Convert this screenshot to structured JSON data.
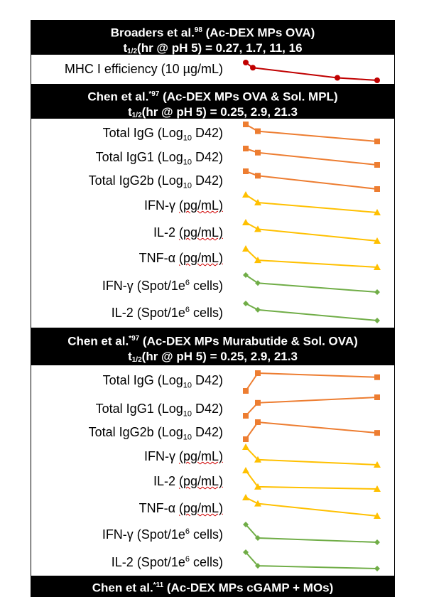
{
  "colors": {
    "red": "#c00000",
    "orange": "#ed7d31",
    "yellow": "#ffc000",
    "green": "#70ad47"
  },
  "sections": [
    {
      "id": "s1",
      "title_author": "Broaders et al.",
      "title_ref": "98",
      "title_rest": " (Ac-DEX MPs OVA)",
      "halflife_prefix": "t",
      "halflife_sub": "1/2",
      "halflife_rest": "(hr @ pH 5) = 0.27, 1.7, 11, 16"
    },
    {
      "id": "s2",
      "title_author": "Chen et al.",
      "title_ref": "*97",
      "title_rest": " (Ac-DEX MPs OVA & Sol. MPL)",
      "halflife_prefix": "t",
      "halflife_sub": "1/2",
      "halflife_rest": "(hr @ pH 5) = 0.25, 2.9, 21.3"
    },
    {
      "id": "s3",
      "title_author": "Chen et al.",
      "title_ref": "*97",
      "title_rest": " (Ac-DEX MPs Murabutide & Sol. OVA)",
      "halflife_prefix": "t",
      "halflife_sub": "1/2",
      "halflife_rest": "(hr @ pH 5) = 0.25, 2.9, 21.3"
    },
    {
      "id": "s4",
      "title_author": "Chen et al.",
      "title_ref": "*11",
      "title_rest": " (Ac-DEX MPs cGAMP + MOs)",
      "halflife_prefix": "",
      "halflife_sub": "",
      "halflife_rest": ""
    }
  ],
  "rows": {
    "mhc": "MHC I efficiency (10 µg/mL)",
    "igg_pre": "Total IgG (Log",
    "igg1_pre": "Total IgG1 (Log",
    "igg2b_pre": "Total IgG2b (Log",
    "log_sub": "10",
    "log_post": " D42)",
    "ifn": "IFN-γ ",
    "il2": "IL-2 ",
    "tnf": "TNF-α ",
    "pg_unit": "(pg/mL)",
    "ifn_spot": "IFN-γ (Spot/1e",
    "il2_spot": "IL-2 (Spot/1e",
    "spot_sup": "6",
    "spot_post": " cells)"
  },
  "chart_data": {
    "type": "line",
    "title": "",
    "xlabel": "",
    "ylabel": "",
    "note": "Sparklines: relative trend versus degradation half-life; no axes or numeric values printed.",
    "x_halflife_hr": {
      "s1": [
        0.27,
        1.7,
        11,
        16
      ],
      "s2": [
        0.25,
        2.9,
        21.3
      ],
      "s3": [
        0.25,
        2.9,
        21.3
      ]
    },
    "series": [
      {
        "section": "s1",
        "row": "MHC I efficiency (10 µg/mL)",
        "marker": "circle",
        "color": "red",
        "values": [
          1.0,
          0.71,
          0.14,
          0.0
        ]
      },
      {
        "section": "s2",
        "row": "Total IgG (Log10 D42)",
        "marker": "square",
        "color": "orange",
        "values": [
          1.0,
          0.6,
          0.0
        ]
      },
      {
        "section": "s2",
        "row": "Total IgG1 (Log10 D42)",
        "marker": "square",
        "color": "orange",
        "values": [
          1.0,
          0.75,
          0.0
        ]
      },
      {
        "section": "s2",
        "row": "Total IgG2b (Log10 D42)",
        "marker": "square",
        "color": "orange",
        "values": [
          1.0,
          0.75,
          0.0
        ]
      },
      {
        "section": "s2",
        "row": "IFN-γ (pg/mL)",
        "marker": "triangle",
        "color": "yellow",
        "values": [
          1.0,
          0.56,
          0.0
        ]
      },
      {
        "section": "s2",
        "row": "IL-2 (pg/mL)",
        "marker": "triangle",
        "color": "yellow",
        "values": [
          1.0,
          0.64,
          0.0
        ]
      },
      {
        "section": "s2",
        "row": "TNF-α (pg/mL)",
        "marker": "triangle",
        "color": "yellow",
        "values": [
          1.0,
          0.38,
          0.0
        ]
      },
      {
        "section": "s2",
        "row": "IFN-γ (Spot/1e6 cells)",
        "marker": "diamond",
        "color": "green",
        "values": [
          1.0,
          0.53,
          0.0
        ]
      },
      {
        "section": "s2",
        "row": "IL-2 (Spot/1e6 cells)",
        "marker": "diamond",
        "color": "green",
        "values": [
          1.0,
          0.63,
          0.0
        ]
      },
      {
        "section": "s3",
        "row": "Total IgG (Log10 D42)",
        "marker": "square",
        "color": "orange",
        "values": [
          0.0,
          1.0,
          0.77
        ]
      },
      {
        "section": "s3",
        "row": "Total IgG1 (Log10 D42)",
        "marker": "square",
        "color": "orange",
        "values": [
          0.0,
          0.7,
          1.0
        ]
      },
      {
        "section": "s3",
        "row": "Total IgG2b (Log10 D42)",
        "marker": "square",
        "color": "orange",
        "values": [
          0.0,
          1.0,
          0.37
        ]
      },
      {
        "section": "s3",
        "row": "IFN-γ (pg/mL)",
        "marker": "triangle",
        "color": "yellow",
        "values": [
          1.0,
          0.29,
          0.0
        ]
      },
      {
        "section": "s3",
        "row": "IL-2 (pg/mL)",
        "marker": "triangle",
        "color": "yellow",
        "values": [
          1.0,
          0.12,
          0.0
        ]
      },
      {
        "section": "s3",
        "row": "TNF-α (pg/mL)",
        "marker": "triangle",
        "color": "yellow",
        "values": [
          1.0,
          0.67,
          0.0
        ]
      },
      {
        "section": "s3",
        "row": "IFN-γ (Spot/1e6 cells)",
        "marker": "diamond",
        "color": "green",
        "values": [
          1.0,
          0.24,
          0.0
        ]
      },
      {
        "section": "s3",
        "row": "IL-2 (Spot/1e6 cells)",
        "marker": "diamond",
        "color": "green",
        "values": [
          1.0,
          0.17,
          0.0
        ]
      }
    ]
  }
}
